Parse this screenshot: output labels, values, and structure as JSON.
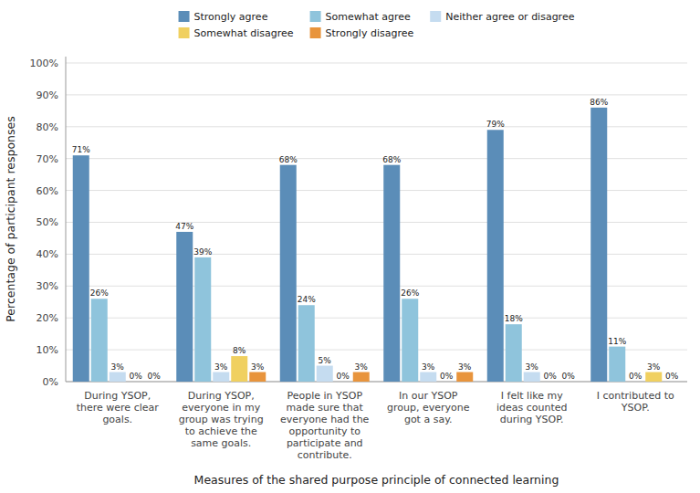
{
  "chart_data": {
    "type": "bar",
    "categories": [
      "During YSOP,\nthere were clear\ngoals.",
      "During YSOP,\neveryone in my\ngroup was trying\nto achieve the\nsame goals.",
      "People in YSOP\nmade sure that\neveryone had the\nopportunity to\nparticipate and\ncontribute.",
      "In our YSOP\ngroup, everyone\ngot a say.",
      "I felt like my\nideas counted\nduring YSOP.",
      "I contributed to\nYSOP."
    ],
    "series": [
      {
        "name": "Strongly agree",
        "color": "#5B8DB8",
        "values": [
          71,
          47,
          68,
          68,
          79,
          86
        ],
        "value_labels": [
          "71%",
          "47%",
          "68%",
          "68%",
          "79%",
          "86%"
        ]
      },
      {
        "name": "Somewhat agree",
        "color": "#8FC4DC",
        "values": [
          26,
          39,
          24,
          26,
          18,
          11
        ],
        "value_labels": [
          "26%",
          "39%",
          "24%",
          "26%",
          "18%",
          "11%"
        ]
      },
      {
        "name": "Neither agree or disagree",
        "color": "#C5DCF0",
        "values": [
          3,
          3,
          5,
          3,
          3,
          0
        ],
        "value_labels": [
          "3%",
          "3%",
          "5%",
          "3%",
          "3%",
          "0%"
        ]
      },
      {
        "name": "Somewhat disagree",
        "color": "#F0D060",
        "values": [
          0,
          8,
          0,
          0,
          0,
          3
        ],
        "value_labels": [
          "0%",
          "8%",
          "0%",
          "0%",
          "0%",
          "3%"
        ]
      },
      {
        "name": "Strongly disagree",
        "color": "#E8943C",
        "values": [
          0,
          3,
          3,
          3,
          0,
          0
        ],
        "value_labels": [
          "0%",
          "3%",
          "3%",
          "3%",
          "0%",
          "0%"
        ]
      }
    ],
    "ylabel": "Percentage of participant responses",
    "xlabel": "Measures of the shared purpose principle of connected learning",
    "ylim": [
      0,
      102
    ],
    "yticks": [
      {
        "value": 0,
        "label": "0%"
      },
      {
        "value": 10,
        "label": "10%"
      },
      {
        "value": 20,
        "label": "20%"
      },
      {
        "value": 30,
        "label": "30%"
      },
      {
        "value": 40,
        "label": "40%"
      },
      {
        "value": 50,
        "label": "50%"
      },
      {
        "value": 60,
        "label": "60%"
      },
      {
        "value": 70,
        "label": "70%"
      },
      {
        "value": 80,
        "label": "80%"
      },
      {
        "value": 90,
        "label": "90%"
      },
      {
        "value": 100,
        "label": "100%"
      }
    ],
    "grid": true,
    "legend": "top",
    "data_labels": true
  }
}
